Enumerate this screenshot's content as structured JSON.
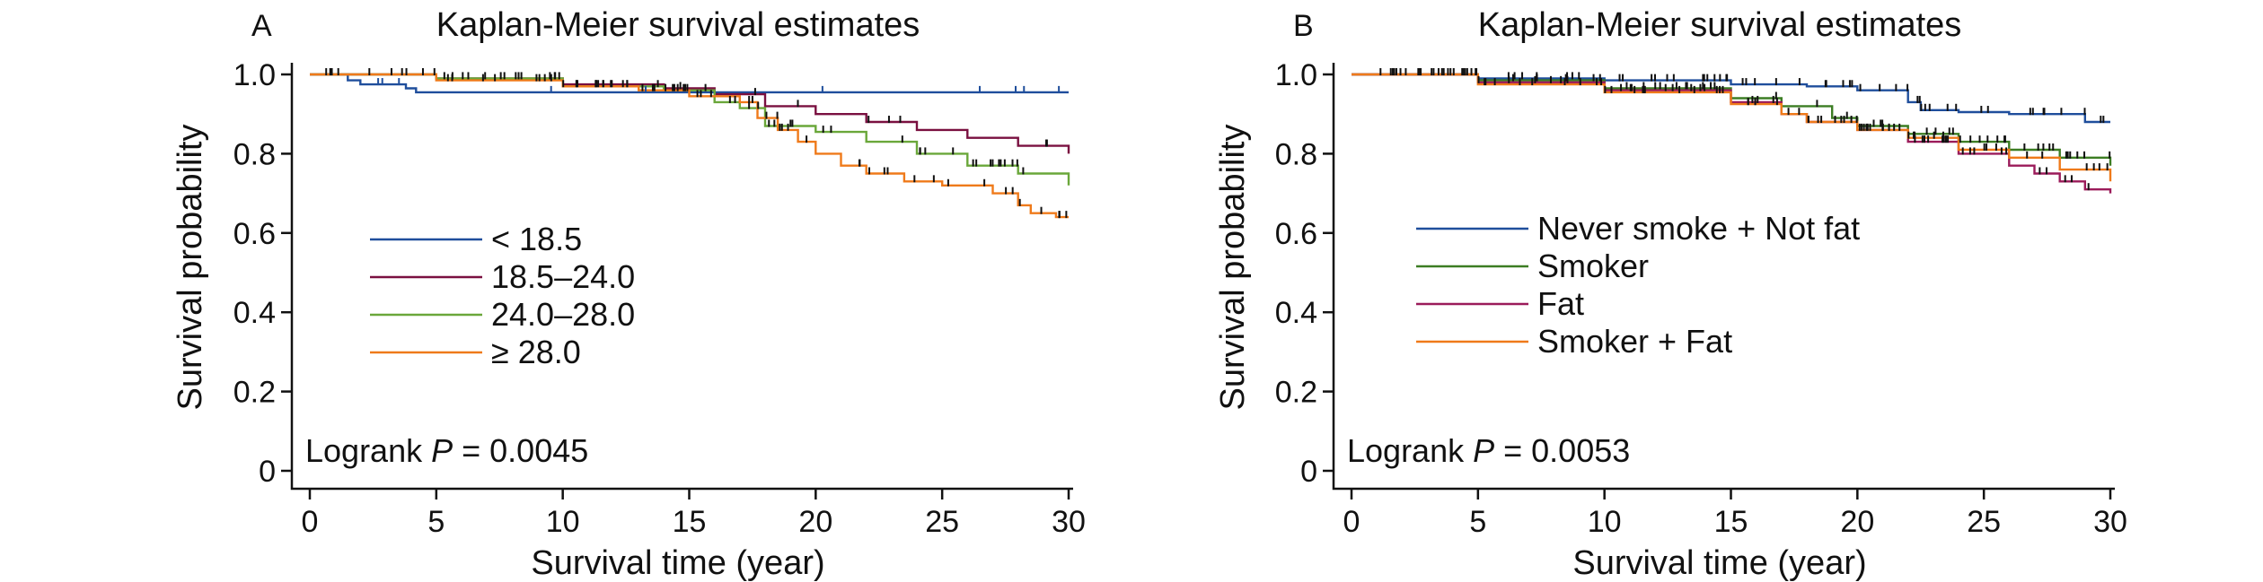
{
  "chart_data": [
    {
      "type": "line",
      "panel_label": "A",
      "title": "Kaplan-Meier survival estimates",
      "xlabel": "Survival time (year)",
      "ylabel": "Survival probability",
      "xlim": [
        0,
        30
      ],
      "ylim": [
        0,
        1.0
      ],
      "xticks": [
        "0",
        "5",
        "10",
        "15",
        "20",
        "25",
        "30"
      ],
      "yticks": [
        "0",
        "0.2",
        "0.4",
        "0.6",
        "0.8",
        "1.0"
      ],
      "grid": false,
      "legend_position": "left",
      "annotation": {
        "prefix": "Logrank ",
        "p_symbol": "P",
        "suffix": " = 0.0045"
      },
      "series": [
        {
          "name": "< 18.5",
          "color": "#1f4e9c",
          "x": [
            0,
            1.5,
            2.0,
            3.8,
            4.2,
            30
          ],
          "y": [
            1.0,
            0.985,
            0.975,
            0.965,
            0.955,
            0.955
          ]
        },
        {
          "name": "18.5–24.0",
          "color": "#7a1040",
          "x": [
            0,
            5,
            10,
            14,
            16,
            18,
            20,
            22,
            24,
            26,
            28,
            30
          ],
          "y": [
            1.0,
            0.99,
            0.975,
            0.965,
            0.95,
            0.92,
            0.9,
            0.88,
            0.86,
            0.84,
            0.82,
            0.8
          ]
        },
        {
          "name": "24.0–28.0",
          "color": "#6aa73a",
          "x": [
            0,
            5,
            10,
            14,
            16,
            17,
            18,
            20,
            22,
            24,
            26,
            28,
            30
          ],
          "y": [
            1.0,
            0.99,
            0.97,
            0.96,
            0.93,
            0.915,
            0.87,
            0.855,
            0.83,
            0.8,
            0.77,
            0.75,
            0.72
          ]
        },
        {
          "name": "≥ 28.0",
          "color": "#ef7a1a",
          "x": [
            0,
            5,
            10,
            13,
            15,
            17,
            17.7,
            18.5,
            19.3,
            20.0,
            21.0,
            22.0,
            23.5,
            25.0,
            27.0,
            28.0,
            28.5,
            29.5,
            30
          ],
          "y": [
            1.0,
            0.985,
            0.97,
            0.96,
            0.945,
            0.93,
            0.89,
            0.86,
            0.83,
            0.8,
            0.77,
            0.75,
            0.73,
            0.72,
            0.7,
            0.67,
            0.65,
            0.64,
            0.64
          ]
        }
      ]
    },
    {
      "type": "line",
      "panel_label": "B",
      "title": "Kaplan-Meier survival estimates",
      "xlabel": "Survival time (year)",
      "ylabel": "Survival probability",
      "xlim": [
        0,
        30
      ],
      "ylim": [
        0,
        1.0
      ],
      "xticks": [
        "0",
        "5",
        "10",
        "15",
        "20",
        "25",
        "30"
      ],
      "yticks": [
        "0",
        "0.2",
        "0.4",
        "0.6",
        "0.8",
        "1.0"
      ],
      "grid": false,
      "legend_position": "left",
      "annotation": {
        "prefix": "Logrank ",
        "p_symbol": "P",
        "suffix": " = 0.0053"
      },
      "series": [
        {
          "name": "Never smoke + Not fat",
          "color": "#1f4e9c",
          "x": [
            0,
            5,
            10,
            15,
            18,
            20,
            22,
            22.5,
            24,
            26,
            28,
            29,
            30
          ],
          "y": [
            1.0,
            0.99,
            0.985,
            0.975,
            0.97,
            0.96,
            0.93,
            0.91,
            0.905,
            0.9,
            0.9,
            0.88,
            0.88
          ]
        },
        {
          "name": "Smoker",
          "color": "#3c7d23",
          "x": [
            0,
            5,
            10,
            15,
            17,
            19,
            20,
            22,
            24,
            26,
            28,
            30
          ],
          "y": [
            1.0,
            0.985,
            0.965,
            0.94,
            0.92,
            0.89,
            0.87,
            0.85,
            0.83,
            0.81,
            0.79,
            0.77
          ]
        },
        {
          "name": "Fat",
          "color": "#9b1b5a",
          "x": [
            0,
            5,
            10,
            15,
            17,
            18,
            20,
            22,
            24,
            26,
            27,
            28,
            29,
            30
          ],
          "y": [
            1.0,
            0.98,
            0.96,
            0.93,
            0.9,
            0.88,
            0.86,
            0.83,
            0.8,
            0.77,
            0.75,
            0.73,
            0.71,
            0.7
          ]
        },
        {
          "name": "Smoker + Fat",
          "color": "#ef7a1a",
          "x": [
            0,
            5,
            10,
            15,
            17,
            18,
            20,
            22,
            24,
            26,
            28,
            30
          ],
          "y": [
            1.0,
            0.975,
            0.955,
            0.925,
            0.9,
            0.88,
            0.86,
            0.84,
            0.81,
            0.79,
            0.76,
            0.73
          ]
        }
      ]
    }
  ]
}
